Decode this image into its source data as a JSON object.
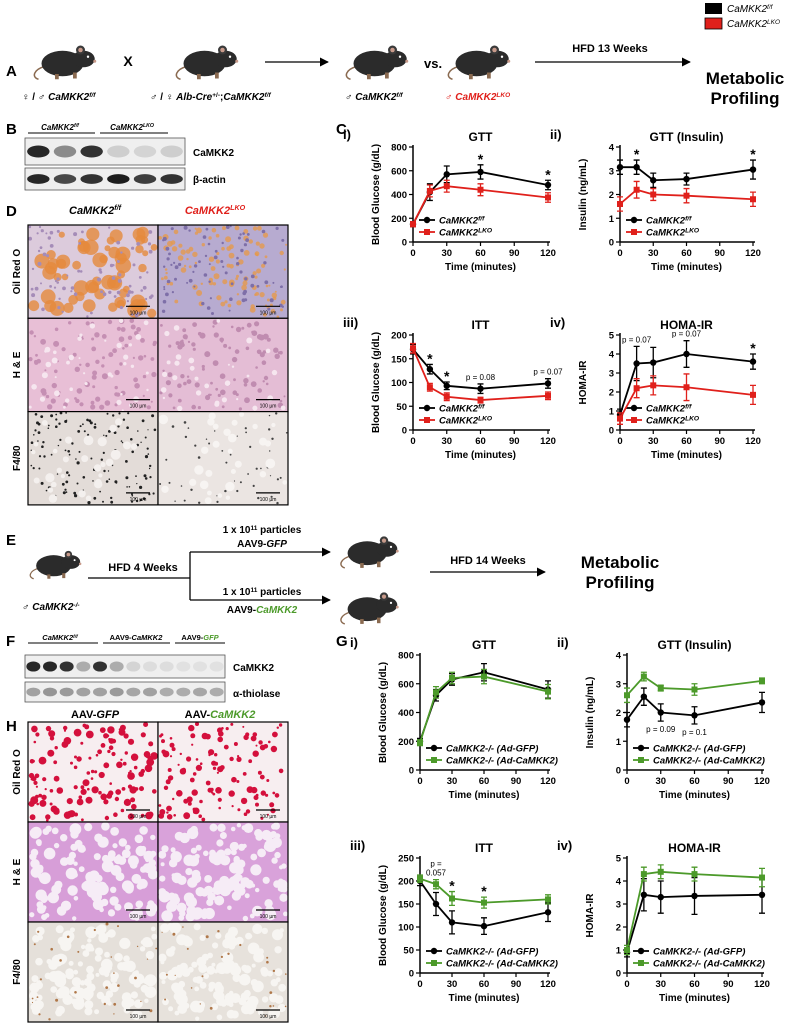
{
  "panels": {
    "A": {
      "letter": "A",
      "legend": [
        [
          "CaMKK2",
          "f/f"
        ],
        [
          "CaMKK2",
          "LKO"
        ]
      ],
      "parent1": [
        "♀ / ♂ ",
        "CaMKK2",
        "f/f"
      ],
      "cross": "X",
      "parent2": [
        "♂ / ♀ ",
        "Alb-Cre",
        "+/-",
        ";",
        "CaMKK2",
        "f/f"
      ],
      "offspring1": [
        "♂ ",
        "CaMKK2",
        "f/f"
      ],
      "vs": "vs.",
      "offspring2": [
        "♂ ",
        "CaMKK2",
        "LKO"
      ],
      "diet": "HFD 13 Weeks",
      "outcome": [
        "Metabolic",
        "Profiling"
      ]
    },
    "B": {
      "letter": "B",
      "groups": [
        [
          "CaMKK2",
          "f/f"
        ],
        [
          "CaMKK2",
          "LKO"
        ]
      ],
      "blots": [
        "CaMKK2",
        "β-actin"
      ]
    },
    "C": {
      "letter": "C"
    },
    "D": {
      "letter": "D",
      "columns": [
        [
          "CaMKK2",
          "f/f"
        ],
        [
          "CaMKK2",
          "LKO"
        ]
      ],
      "rows": [
        "Oil Red O",
        "H & E",
        "F4/80"
      ],
      "scale_bar": "100 µm"
    },
    "E": {
      "letter": "E",
      "mouse": [
        "♂ ",
        "CaMKK2",
        "-/-"
      ],
      "diet1": "HFD 4 Weeks",
      "dose": [
        "1 x 10",
        "11",
        " particles"
      ],
      "vector1": [
        "AAV9-",
        "GFP"
      ],
      "vector2": [
        "AAV9-",
        "CaMKK2"
      ],
      "diet2": "HFD 14 Weeks",
      "outcome": [
        "Metabolic",
        "Profiling"
      ]
    },
    "F": {
      "letter": "F",
      "groups": [
        [
          "CaMKK2",
          "f/f"
        ],
        [
          "AAV9-",
          "CaMKK2"
        ],
        [
          "AAV9-",
          "GFP"
        ]
      ],
      "blots": [
        "CaMKK2",
        "α-thiolase"
      ]
    },
    "G": {
      "letter": "G"
    },
    "H": {
      "letter": "H",
      "columns": [
        [
          "AAV-",
          "GFP"
        ],
        [
          "AAV-",
          "CaMKK2"
        ]
      ],
      "rows": [
        "Oil Red O",
        "H & E",
        "F4/80"
      ],
      "scale_bar": "100 µm"
    }
  },
  "chart_data": [
    {
      "type": "line",
      "panel": "i)",
      "title": "GTT",
      "x_label": "Time (minutes)",
      "y_label": "Blood Glucose (g/dL)",
      "x": [
        0,
        15,
        30,
        60,
        120
      ],
      "xlim": [
        0,
        120
      ],
      "xticks": [
        0,
        30,
        60,
        90,
        120
      ],
      "ylim": [
        0,
        800
      ],
      "yticks": [
        0,
        200,
        400,
        600,
        800
      ],
      "series": [
        {
          "name": "CaMKK2",
          "name_sup": "f/f",
          "color": "#000000",
          "marker": "circle",
          "values": [
            150,
            420,
            570,
            590,
            480
          ],
          "errors": [
            20,
            70,
            70,
            60,
            40
          ]
        },
        {
          "name": "CaMKK2",
          "name_sup": "LKO",
          "color": "#e0201b",
          "marker": "square",
          "values": [
            150,
            430,
            470,
            440,
            375
          ],
          "errors": [
            20,
            50,
            50,
            50,
            40
          ]
        }
      ],
      "annotations": [
        {
          "x": 60,
          "text": [
            "*"
          ]
        },
        {
          "x": 120,
          "text": [
            "*"
          ]
        }
      ]
    },
    {
      "type": "line",
      "panel": "ii)",
      "title": "GTT (Insulin)",
      "x_label": "Time (minutes)",
      "y_label": "Insulin (ng/mL)",
      "x": [
        0,
        15,
        30,
        60,
        120
      ],
      "xlim": [
        0,
        120
      ],
      "xticks": [
        0,
        30,
        60,
        90,
        120
      ],
      "ylim": [
        0,
        4
      ],
      "yticks": [
        0,
        1,
        2,
        3,
        4
      ],
      "series": [
        {
          "name": "CaMKK2",
          "name_sup": "f/f",
          "color": "#000000",
          "marker": "circle",
          "values": [
            3.15,
            3.15,
            2.6,
            2.65,
            3.05
          ],
          "errors": [
            0.3,
            0.3,
            0.3,
            0.25,
            0.4
          ]
        },
        {
          "name": "CaMKK2",
          "name_sup": "LKO",
          "color": "#e0201b",
          "marker": "square",
          "values": [
            1.6,
            2.2,
            2.0,
            1.95,
            1.8
          ],
          "errors": [
            0.3,
            0.35,
            0.25,
            0.3,
            0.3
          ]
        }
      ],
      "annotations": [
        {
          "x": 15,
          "text": [
            "*"
          ]
        },
        {
          "x": 120,
          "text": [
            "*"
          ]
        }
      ]
    },
    {
      "type": "line",
      "panel": "iii)",
      "title": "ITT",
      "x_label": "Time (minutes)",
      "y_label": "Blood Glucose (g/dL)",
      "x": [
        0,
        15,
        30,
        60,
        120
      ],
      "xlim": [
        0,
        120
      ],
      "xticks": [
        0,
        30,
        60,
        90,
        120
      ],
      "ylim": [
        0,
        200
      ],
      "yticks": [
        0,
        50,
        100,
        150,
        200
      ],
      "series": [
        {
          "name": "CaMKK2",
          "name_sup": "f/f",
          "color": "#000000",
          "marker": "circle",
          "values": [
            170,
            128,
            93,
            87,
            98
          ],
          "errors": [
            10,
            10,
            8,
            10,
            10
          ]
        },
        {
          "name": "CaMKK2",
          "name_sup": "LKO",
          "color": "#e0201b",
          "marker": "square",
          "values": [
            172,
            90,
            70,
            63,
            72
          ],
          "errors": [
            10,
            8,
            8,
            6,
            8
          ]
        }
      ],
      "annotations": [
        {
          "x": 15,
          "text": [
            "*"
          ]
        },
        {
          "x": 30,
          "text": [
            "*"
          ]
        },
        {
          "x": 60,
          "text": [
            "p = 0.08"
          ]
        },
        {
          "x": 120,
          "text": [
            "p = 0.07"
          ]
        }
      ]
    },
    {
      "type": "line",
      "panel": "iv)",
      "title": "HOMA-IR",
      "x_label": "Time (minutes)",
      "y_label": "HOMA-IR",
      "x": [
        0,
        15,
        30,
        60,
        120
      ],
      "xlim": [
        0,
        120
      ],
      "xticks": [
        0,
        30,
        60,
        90,
        120
      ],
      "ylim": [
        0,
        5
      ],
      "yticks": [
        0,
        1,
        2,
        3,
        4,
        5
      ],
      "series": [
        {
          "name": "CaMKK2",
          "name_sup": "f/f",
          "color": "#000000",
          "marker": "circle",
          "values": [
            0.8,
            3.5,
            3.55,
            4.0,
            3.6
          ],
          "errors": [
            0.3,
            0.9,
            0.8,
            0.7,
            0.4
          ]
        },
        {
          "name": "CaMKK2",
          "name_sup": "LKO",
          "color": "#e0201b",
          "marker": "square",
          "values": [
            0.6,
            2.2,
            2.35,
            2.25,
            1.85
          ],
          "errors": [
            0.3,
            0.5,
            0.5,
            0.7,
            0.5
          ]
        }
      ],
      "annotations": [
        {
          "x": 15,
          "text": [
            "p = 0.07"
          ]
        },
        {
          "x": 60,
          "text": [
            "p = 0.07"
          ]
        },
        {
          "x": 120,
          "text": [
            "*"
          ]
        }
      ]
    },
    {
      "type": "line",
      "panel": "i)",
      "title": "GTT",
      "x_label": "Time (minutes)",
      "y_label": "Blood Glucose (g/dL)",
      "x": [
        0,
        15,
        30,
        60,
        120
      ],
      "xlim": [
        0,
        120
      ],
      "xticks": [
        0,
        30,
        60,
        90,
        120
      ],
      "ylim": [
        0,
        800
      ],
      "yticks": [
        0,
        200,
        400,
        600,
        800
      ],
      "series": [
        {
          "name": "CaMKK2-/- (Ad-GFP)",
          "color": "#000000",
          "marker": "circle",
          "values": [
            200,
            520,
            630,
            680,
            560
          ],
          "errors": [
            20,
            40,
            40,
            60,
            60
          ]
        },
        {
          "name": "CaMKK2-/- (Ad-CaMKK2)",
          "color": "#4c9a2a",
          "marker": "square",
          "values": [
            190,
            540,
            640,
            650,
            545
          ],
          "errors": [
            20,
            40,
            40,
            50,
            50
          ]
        }
      ],
      "annotations": []
    },
    {
      "type": "line",
      "panel": "ii)",
      "title": "GTT (Insulin)",
      "x_label": "Time (minutes)",
      "y_label": "Insulin (ng/mL)",
      "x": [
        0,
        15,
        30,
        60,
        120
      ],
      "xlim": [
        0,
        120
      ],
      "xticks": [
        0,
        30,
        60,
        90,
        120
      ],
      "ylim": [
        0,
        4
      ],
      "yticks": [
        0,
        1,
        2,
        3,
        4
      ],
      "series": [
        {
          "name": "CaMKK2-/- (Ad-GFP)",
          "color": "#000000",
          "marker": "circle",
          "values": [
            1.75,
            2.55,
            2.0,
            1.9,
            2.35
          ],
          "errors": [
            0.25,
            0.3,
            0.3,
            0.3,
            0.35
          ]
        },
        {
          "name": "CaMKK2-/- (Ad-CaMKK2)",
          "color": "#4c9a2a",
          "marker": "square",
          "values": [
            2.6,
            3.25,
            2.85,
            2.8,
            3.1
          ],
          "errors": [
            0.25,
            0.15,
            0.1,
            0.2,
            0.1
          ]
        }
      ],
      "annotations": [
        {
          "x": 30,
          "text": [
            "p = 0.09"
          ],
          "below": true
        },
        {
          "x": 60,
          "text": [
            "p = 0.1"
          ],
          "below": true
        }
      ]
    },
    {
      "type": "line",
      "panel": "iii)",
      "title": "ITT",
      "x_label": "Time (minutes)",
      "y_label": "Blood Glucose (g/dL)",
      "x": [
        0,
        15,
        30,
        60,
        120
      ],
      "xlim": [
        0,
        120
      ],
      "xticks": [
        0,
        30,
        60,
        90,
        120
      ],
      "ylim": [
        0,
        250
      ],
      "yticks": [
        0,
        50,
        100,
        150,
        200,
        250
      ],
      "series": [
        {
          "name": "CaMKK2-/- (Ad-GFP)",
          "color": "#000000",
          "marker": "circle",
          "values": [
            200,
            150,
            110,
            102,
            132
          ],
          "errors": [
            10,
            25,
            25,
            18,
            20
          ]
        },
        {
          "name": "CaMKK2-/- (Ad-CaMKK2)",
          "color": "#4c9a2a",
          "marker": "square",
          "values": [
            205,
            193,
            162,
            153,
            160
          ],
          "errors": [
            8,
            10,
            15,
            12,
            10
          ]
        }
      ],
      "annotations": [
        {
          "x": 15,
          "text": [
            "p =",
            "0.057"
          ]
        },
        {
          "x": 30,
          "text": [
            "*"
          ]
        },
        {
          "x": 60,
          "text": [
            "*"
          ]
        }
      ]
    },
    {
      "type": "line",
      "panel": "iv)",
      "title": "HOMA-IR",
      "x_label": "Time (minutes)",
      "y_label": "HOMA-IR",
      "x": [
        0,
        15,
        30,
        60,
        120
      ],
      "xlim": [
        0,
        120
      ],
      "xticks": [
        0,
        30,
        60,
        90,
        120
      ],
      "ylim": [
        0,
        5
      ],
      "yticks": [
        0,
        1,
        2,
        3,
        4,
        5
      ],
      "series": [
        {
          "name": "CaMKK2-/- (Ad-GFP)",
          "color": "#000000",
          "marker": "circle",
          "values": [
            0.9,
            3.4,
            3.3,
            3.35,
            3.4
          ],
          "errors": [
            0.2,
            0.7,
            0.7,
            0.8,
            0.8
          ]
        },
        {
          "name": "CaMKK2-/- (Ad-CaMKK2)",
          "color": "#4c9a2a",
          "marker": "square",
          "values": [
            1.0,
            4.3,
            4.4,
            4.3,
            4.15
          ],
          "errors": [
            0.2,
            0.3,
            0.3,
            0.3,
            0.4
          ]
        }
      ],
      "annotations": []
    }
  ]
}
